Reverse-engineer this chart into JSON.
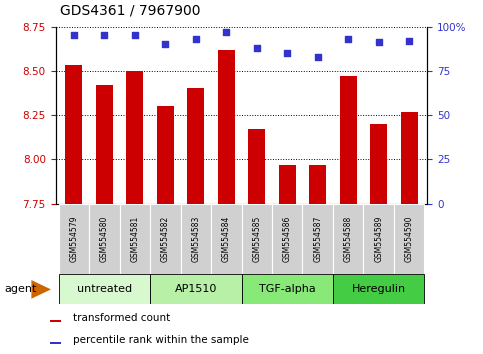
{
  "title": "GDS4361 / 7967900",
  "samples": [
    "GSM554579",
    "GSM554580",
    "GSM554581",
    "GSM554582",
    "GSM554583",
    "GSM554584",
    "GSM554585",
    "GSM554586",
    "GSM554587",
    "GSM554588",
    "GSM554589",
    "GSM554590"
  ],
  "red_values": [
    8.53,
    8.42,
    8.5,
    8.3,
    8.4,
    8.62,
    8.17,
    7.97,
    7.97,
    8.47,
    8.2,
    8.27
  ],
  "blue_values": [
    95,
    95,
    95,
    90,
    93,
    97,
    88,
    85,
    83,
    93,
    91,
    92
  ],
  "ylim_left": [
    7.75,
    8.75
  ],
  "ylim_right": [
    0,
    100
  ],
  "yticks_left": [
    7.75,
    8.0,
    8.25,
    8.5,
    8.75
  ],
  "yticks_right": [
    0,
    25,
    50,
    75,
    100
  ],
  "bar_color": "#cc0000",
  "dot_color": "#3333cc",
  "grid_color": "#000000",
  "agent_groups": [
    {
      "label": "untreated",
      "start": 0,
      "end": 3,
      "color": "#d8f8d0"
    },
    {
      "label": "AP1510",
      "start": 3,
      "end": 6,
      "color": "#b8f0a8"
    },
    {
      "label": "TGF-alpha",
      "start": 6,
      "end": 9,
      "color": "#88e878"
    },
    {
      "label": "Heregulin",
      "start": 9,
      "end": 12,
      "color": "#44cc44"
    }
  ],
  "legend_red_label": "transformed count",
  "legend_blue_label": "percentile rank within the sample",
  "agent_label": "agent",
  "ylabel_left_color": "#cc0000",
  "ylabel_right_color": "#3333cc",
  "cell_color": "#d0d0d0",
  "cell_border_color": "#ffffff",
  "arrow_color": "#cc6600"
}
